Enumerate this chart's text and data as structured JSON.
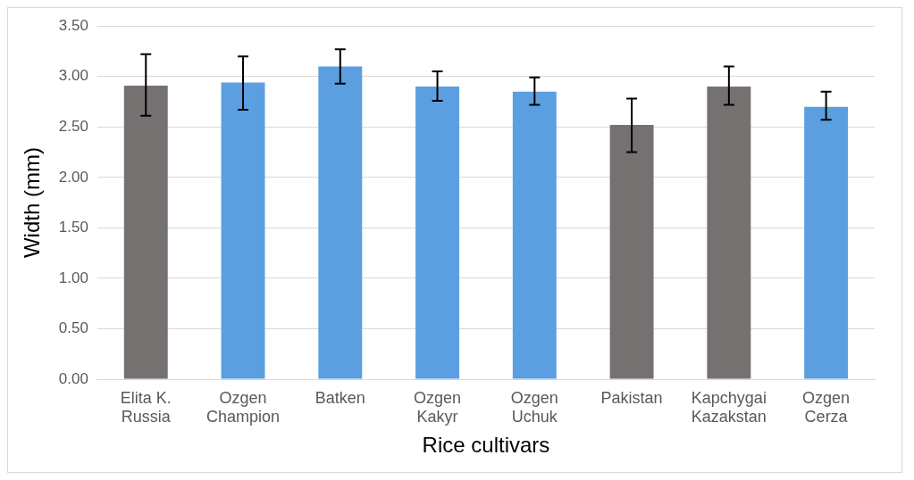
{
  "chart_data": {
    "type": "bar",
    "xlabel": "Rice cultivars",
    "ylabel": "Width (mm)",
    "categories": [
      "Elita K. Russia",
      "Ozgen Champion",
      "Batken",
      "Ozgen Kakyr",
      "Ozgen Uchuk",
      "Pakistan",
      "Kapchygai Kazakstan",
      "Ozgen Cerza"
    ],
    "values": [
      2.91,
      2.94,
      3.1,
      2.9,
      2.85,
      2.52,
      2.9,
      2.7
    ],
    "errors": [
      [
        2.61,
        3.22
      ],
      [
        2.67,
        3.2
      ],
      [
        2.93,
        3.27
      ],
      [
        2.76,
        3.05
      ],
      [
        2.72,
        2.99
      ],
      [
        2.25,
        2.78
      ],
      [
        2.72,
        3.1
      ],
      [
        2.57,
        2.85
      ]
    ],
    "colors": [
      "#767171",
      "#5b9fe0",
      "#5b9fe0",
      "#5b9fe0",
      "#5b9fe0",
      "#767171",
      "#767171",
      "#5b9fe0"
    ],
    "ylim": [
      0,
      3.5
    ],
    "yticks": [
      {
        "value": 0,
        "label": "0.00"
      },
      {
        "value": 0.5,
        "label": "0.50"
      },
      {
        "value": 1,
        "label": "1.00"
      },
      {
        "value": 1.5,
        "label": "1.50"
      },
      {
        "value": 2,
        "label": "2.00"
      },
      {
        "value": 2.5,
        "label": "2.50"
      },
      {
        "value": 3,
        "label": "3.00"
      },
      {
        "value": 3.5,
        "label": "3.50"
      }
    ],
    "grid": "y",
    "legend": false
  }
}
